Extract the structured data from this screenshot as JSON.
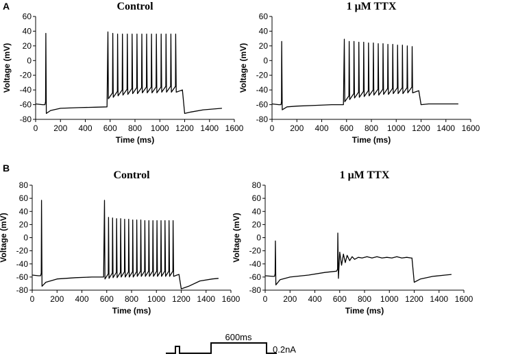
{
  "panels": [
    {
      "letter": "A"
    },
    {
      "letter": "B"
    }
  ],
  "chart_data": [
    {
      "type": "line",
      "panel": "A",
      "title": "Control",
      "xlabel": "Time (ms)",
      "ylabel": "Voltage (mV)",
      "xlim": [
        0,
        1600
      ],
      "ylim": [
        -80,
        60
      ],
      "xticks": [
        0,
        200,
        400,
        600,
        800,
        1000,
        1200,
        1400,
        1600
      ],
      "yticks": [
        -80,
        -60,
        -40,
        -20,
        0,
        20,
        40,
        60
      ],
      "rest": [
        [
          0,
          -59
        ],
        [
          55,
          -60
        ],
        [
          75,
          -60
        ]
      ],
      "single_spike": {
        "t": 82,
        "peak": 37,
        "ahp": -72
      },
      "post_spike_recovery": [
        [
          120,
          -68
        ],
        [
          200,
          -65
        ],
        [
          350,
          -64
        ],
        [
          480,
          -63.5
        ],
        [
          575,
          -63
        ]
      ],
      "step": {
        "start": 580,
        "end": 1180
      },
      "train_peaks": [
        39,
        37,
        36,
        36,
        36,
        36,
        36,
        36,
        36,
        36,
        36,
        36,
        36,
        36,
        36
      ],
      "train_troughs": [
        -52,
        -50,
        -48,
        -47,
        -46,
        -45,
        -45,
        -44,
        -44,
        -44,
        -44,
        -43,
        -43,
        -43,
        -43
      ],
      "post_step": [
        [
          1200,
          -72
        ],
        [
          1250,
          -70
        ],
        [
          1350,
          -67
        ],
        [
          1500,
          -65
        ]
      ]
    },
    {
      "type": "line",
      "panel": "A",
      "title": "1 μM TTX",
      "xlabel": "Time (ms)",
      "ylabel": "Voltage (mV)",
      "xlim": [
        0,
        1600
      ],
      "ylim": [
        -80,
        60
      ],
      "xticks": [
        0,
        200,
        400,
        600,
        800,
        1000,
        1200,
        1400,
        1600
      ],
      "yticks": [
        -80,
        -60,
        -40,
        -20,
        0,
        20,
        40,
        60
      ],
      "rest": [
        [
          0,
          -59
        ],
        [
          55,
          -60
        ],
        [
          72,
          -60
        ]
      ],
      "single_spike": {
        "t": 78,
        "peak": 26,
        "ahp": -67
      },
      "post_spike_recovery": [
        [
          120,
          -63
        ],
        [
          200,
          -62
        ],
        [
          350,
          -61
        ],
        [
          480,
          -60
        ],
        [
          575,
          -60
        ]
      ],
      "step": {
        "start": 580,
        "end": 1180
      },
      "train_peaks": [
        29,
        26,
        26,
        25,
        25,
        24,
        24,
        23,
        23,
        22,
        22,
        21,
        21,
        20,
        19
      ],
      "train_troughs": [
        -56,
        -53,
        -51,
        -50,
        -49,
        -48,
        -47,
        -47,
        -46,
        -46,
        -45,
        -45,
        -45,
        -44,
        -44
      ],
      "post_step": [
        [
          1200,
          -60
        ],
        [
          1260,
          -59
        ],
        [
          1350,
          -59
        ],
        [
          1500,
          -59
        ]
      ]
    },
    {
      "type": "line",
      "panel": "B",
      "title": "Control",
      "xlabel": "Time (ms)",
      "ylabel": "Voltage (mV)",
      "xlim": [
        0,
        1600
      ],
      "ylim": [
        -80,
        80
      ],
      "xticks": [
        0,
        200,
        400,
        600,
        800,
        1000,
        1200,
        1400,
        1600
      ],
      "yticks": [
        -80,
        -60,
        -40,
        -20,
        0,
        20,
        40,
        60,
        80
      ],
      "rest": [
        [
          0,
          -57
        ],
        [
          50,
          -58
        ],
        [
          68,
          -58
        ]
      ],
      "single_spike": {
        "t": 75,
        "peak": 57,
        "ahp": -74
      },
      "post_spike_recovery": [
        [
          110,
          -68
        ],
        [
          200,
          -63
        ],
        [
          350,
          -61
        ],
        [
          480,
          -60
        ],
        [
          575,
          -60
        ]
      ],
      "step": {
        "start": 580,
        "end": 1180
      },
      "train_peaks": [
        57,
        31,
        30,
        29,
        29,
        28,
        28,
        27,
        27,
        27,
        26,
        26,
        26,
        26,
        26,
        26,
        26,
        26
      ],
      "train_troughs": [
        -63,
        -62,
        -61,
        -61,
        -60,
        -60,
        -60,
        -60,
        -59,
        -59,
        -59,
        -59,
        -59,
        -59,
        -59,
        -59,
        -59,
        -59
      ],
      "post_step": [
        [
          1200,
          -78
        ],
        [
          1260,
          -74
        ],
        [
          1350,
          -66
        ],
        [
          1450,
          -63
        ],
        [
          1500,
          -62
        ]
      ]
    },
    {
      "type": "line",
      "panel": "B",
      "title": "1 μM TTX",
      "xlabel": "Time (ms)",
      "ylabel": "Voltage (mV)",
      "xlim": [
        0,
        1600
      ],
      "ylim": [
        -80,
        80
      ],
      "xticks": [
        0,
        200,
        400,
        600,
        800,
        1000,
        1200,
        1400,
        1600
      ],
      "yticks": [
        -80,
        -60,
        -40,
        -20,
        0,
        20,
        40,
        60,
        80
      ],
      "rest": [
        [
          0,
          -58
        ],
        [
          60,
          -59
        ],
        [
          75,
          -59
        ]
      ],
      "single_spike": {
        "t": 82,
        "peak": -5,
        "ahp": -72
      },
      "post_spike_recovery": [
        [
          120,
          -64
        ],
        [
          200,
          -60
        ],
        [
          350,
          -57
        ],
        [
          480,
          -53
        ],
        [
          575,
          -51
        ]
      ],
      "step": {
        "start": 580,
        "end": 1180
      },
      "step_spike": {
        "t": 585,
        "peak": 7,
        "trough": -62
      },
      "step_osc": [
        [
          600,
          -22
        ],
        [
          615,
          -42
        ],
        [
          630,
          -25
        ],
        [
          645,
          -38
        ],
        [
          660,
          -27
        ],
        [
          680,
          -35
        ],
        [
          700,
          -29
        ],
        [
          720,
          -33
        ],
        [
          750,
          -30
        ],
        [
          780,
          -31
        ],
        [
          820,
          -29
        ],
        [
          860,
          -31
        ],
        [
          900,
          -29
        ],
        [
          940,
          -31
        ],
        [
          980,
          -30
        ],
        [
          1020,
          -31
        ],
        [
          1060,
          -29
        ],
        [
          1100,
          -31
        ],
        [
          1140,
          -30
        ],
        [
          1175,
          -31
        ]
      ],
      "post_step": [
        [
          1200,
          -68
        ],
        [
          1250,
          -63
        ],
        [
          1350,
          -59
        ],
        [
          1450,
          -57
        ],
        [
          1500,
          -56
        ]
      ]
    }
  ],
  "stimulus": {
    "duration_label": "600ms",
    "amplitude_label": "0.2nA"
  }
}
